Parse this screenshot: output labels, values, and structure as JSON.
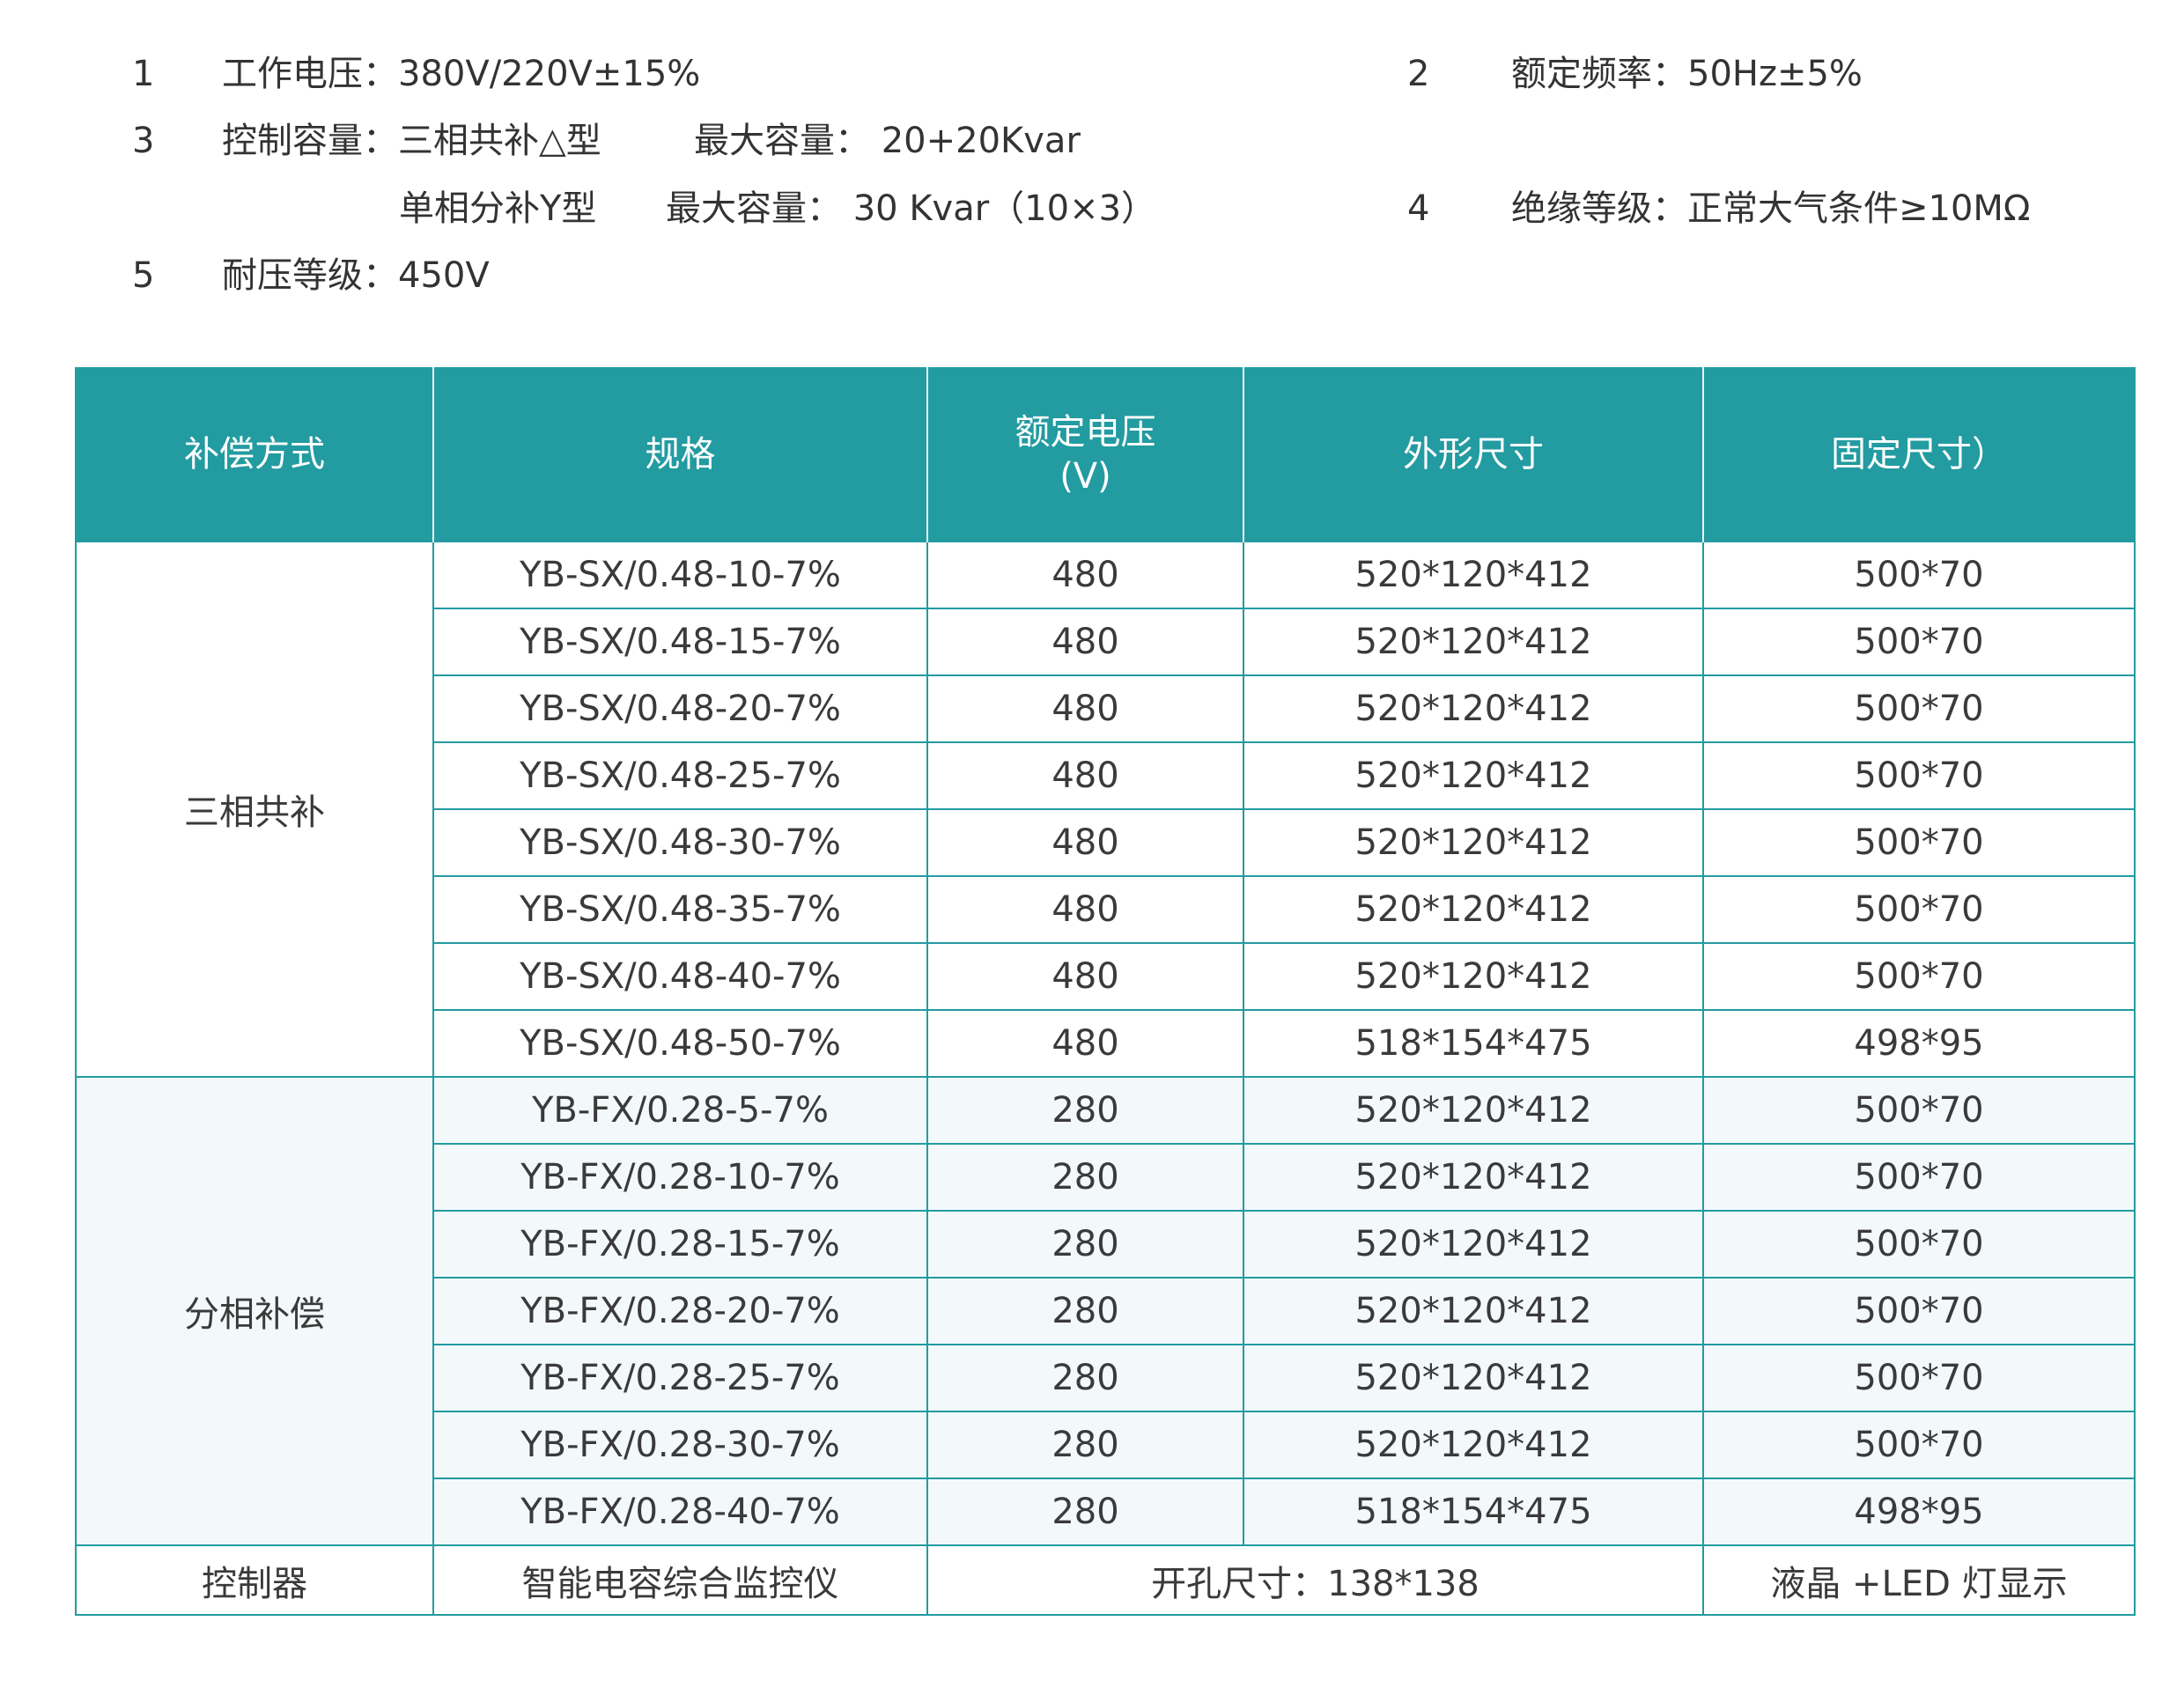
{
  "specs": {
    "item1": {
      "num": "1",
      "text": "工作电压：380V/220V±15%"
    },
    "item2": {
      "num": "2",
      "text": "额定频率：50Hz±5%"
    },
    "item3": {
      "num": "3",
      "line1": "控制容量：三相共补△型",
      "line1b": "最大容量：  20+20Kvar",
      "line2": "单相分补Y型",
      "line2b": "最大容量：  30 Kvar（10×3）"
    },
    "item4": {
      "num": "4",
      "text": "绝缘等级：正常大气条件≥10MΩ"
    },
    "item5": {
      "num": "5",
      "text": "耐压等级：450V"
    }
  },
  "table": {
    "headers": [
      "补偿方式",
      "规格",
      "额定电压",
      "(V)",
      "外形尺寸",
      "固定尺寸）"
    ],
    "group1": {
      "label": "三相共补",
      "rows": [
        [
          "YB-SX/0.48-10-7%",
          "480",
          "520*120*412",
          "500*70"
        ],
        [
          "YB-SX/0.48-15-7%",
          "480",
          "520*120*412",
          "500*70"
        ],
        [
          "YB-SX/0.48-20-7%",
          "480",
          "520*120*412",
          "500*70"
        ],
        [
          "YB-SX/0.48-25-7%",
          "480",
          "520*120*412",
          "500*70"
        ],
        [
          "YB-SX/0.48-30-7%",
          "480",
          "520*120*412",
          "500*70"
        ],
        [
          "YB-SX/0.48-35-7%",
          "480",
          "520*120*412",
          "500*70"
        ],
        [
          "YB-SX/0.48-40-7%",
          "480",
          "520*120*412",
          "500*70"
        ],
        [
          "YB-SX/0.48-50-7%",
          "480",
          "518*154*475",
          "498*95"
        ]
      ]
    },
    "group2": {
      "label": "分相补偿",
      "rows": [
        [
          "YB-FX/0.28-5-7%",
          "280",
          "520*120*412",
          "500*70"
        ],
        [
          "YB-FX/0.28-10-7%",
          "280",
          "520*120*412",
          "500*70"
        ],
        [
          "YB-FX/0.28-15-7%",
          "280",
          "520*120*412",
          "500*70"
        ],
        [
          "YB-FX/0.28-20-7%",
          "280",
          "520*120*412",
          "500*70"
        ],
        [
          "YB-FX/0.28-25-7%",
          "280",
          "520*120*412",
          "500*70"
        ],
        [
          "YB-FX/0.28-30-7%",
          "280",
          "520*120*412",
          "500*70"
        ],
        [
          "YB-FX/0.28-40-7%",
          "280",
          "518*154*475",
          "498*95"
        ]
      ]
    },
    "controller": {
      "label": "控制器",
      "spec": "智能电容综合监控仪",
      "cutout": "开孔尺寸：138*138",
      "display": "液晶 +LED 灯显示"
    }
  },
  "colors": {
    "header_bg": "#229ba1",
    "border": "#229ba1",
    "alt_row": "#f3f9fa"
  }
}
